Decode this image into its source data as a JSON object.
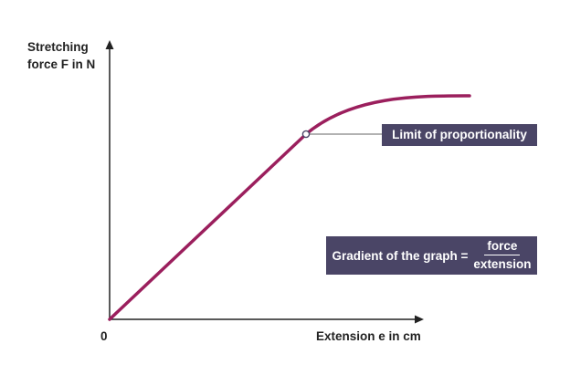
{
  "chart_data": {
    "type": "line",
    "ylabel": [
      "Stretching",
      "force F in N"
    ],
    "xlabel": "Extension e in cm",
    "origin_label": "0",
    "curve_color": "#9b1f5d",
    "axis_color": "#222222",
    "annotations": {
      "limit": "Limit of proportionality",
      "gradient_prefix": "Gradient of the graph =",
      "gradient_numerator": "force",
      "gradient_denominator": "extension"
    },
    "callout_color": "#4a4566"
  }
}
